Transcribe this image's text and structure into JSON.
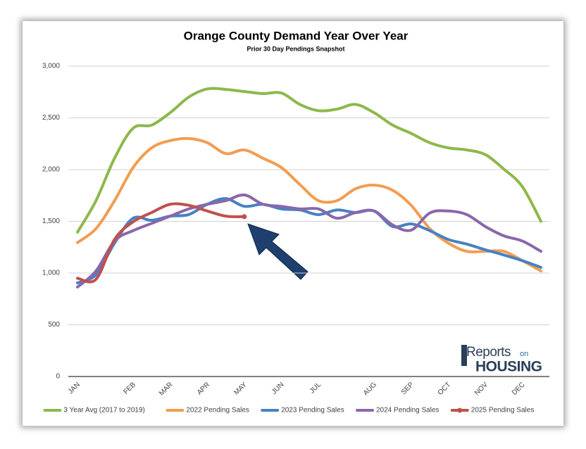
{
  "chart_data": {
    "type": "line",
    "title": "Orange County Demand Year Over Year",
    "subtitle": "Prior 30 Day Pendings Snapshot",
    "categories": [
      "JAN",
      null,
      null,
      "FEB",
      null,
      "MAR",
      null,
      "APR",
      null,
      "MAY",
      null,
      "JUN",
      null,
      "JUL",
      null,
      null,
      "AUG",
      null,
      "SEP",
      null,
      "OCT",
      null,
      "NOV",
      null,
      "DEC",
      null
    ],
    "series": [
      {
        "name": "3 Year Avg (2017 to 2019)",
        "color": "#8db84a",
        "values": [
          1395,
          1700,
          2110,
          2400,
          2430,
          2550,
          2700,
          2780,
          2775,
          2755,
          2735,
          2740,
          2630,
          2570,
          2585,
          2630,
          2550,
          2430,
          2350,
          2260,
          2210,
          2190,
          2145,
          2005,
          1835,
          1500
        ]
      },
      {
        "name": "2022 Pending Sales",
        "color": "#f39c50",
        "values": [
          1295,
          1430,
          1700,
          2020,
          2210,
          2280,
          2300,
          2260,
          2155,
          2190,
          2110,
          2020,
          1855,
          1700,
          1700,
          1815,
          1850,
          1800,
          1655,
          1430,
          1290,
          1210,
          1210,
          1210,
          1120,
          1020
        ]
      },
      {
        "name": "2023 Pending Sales",
        "color": "#4682c2",
        "values": [
          905,
          985,
          1290,
          1530,
          1510,
          1550,
          1565,
          1665,
          1720,
          1645,
          1665,
          1620,
          1610,
          1565,
          1610,
          1585,
          1600,
          1450,
          1475,
          1410,
          1325,
          1280,
          1225,
          1175,
          1120,
          1055
        ]
      },
      {
        "name": "2024 Pending Sales",
        "color": "#8967ab",
        "values": [
          865,
          1020,
          1310,
          1410,
          1480,
          1550,
          1620,
          1665,
          1700,
          1755,
          1665,
          1645,
          1620,
          1620,
          1530,
          1585,
          1600,
          1465,
          1415,
          1580,
          1600,
          1565,
          1450,
          1360,
          1310,
          1210
        ]
      },
      {
        "name": "2025 Pending Sales",
        "color": "#c0504d",
        "marker": true,
        "values": [
          950,
          940,
          1325,
          1495,
          1585,
          1665,
          1655,
          1600,
          1550,
          1545,
          null,
          null,
          null,
          null,
          null,
          null,
          null,
          null,
          null,
          null,
          null,
          null,
          null,
          null,
          null,
          null
        ]
      }
    ],
    "ylim": [
      0,
      3000
    ],
    "yticks": [
      0,
      {
        "value": 500,
        "label": "500"
      },
      {
        "value": 1000,
        "label": "1,000"
      },
      {
        "value": 1500,
        "label": "1,500"
      },
      {
        "value": 2000,
        "label": "2,000"
      },
      {
        "value": 2500,
        "label": "2,500"
      },
      {
        "value": 3000,
        "label": "3,000"
      }
    ],
    "grid": true,
    "legend": "bottom"
  },
  "logo": {
    "name": "Reports",
    "small": "on",
    "brand": "HOUSING"
  }
}
